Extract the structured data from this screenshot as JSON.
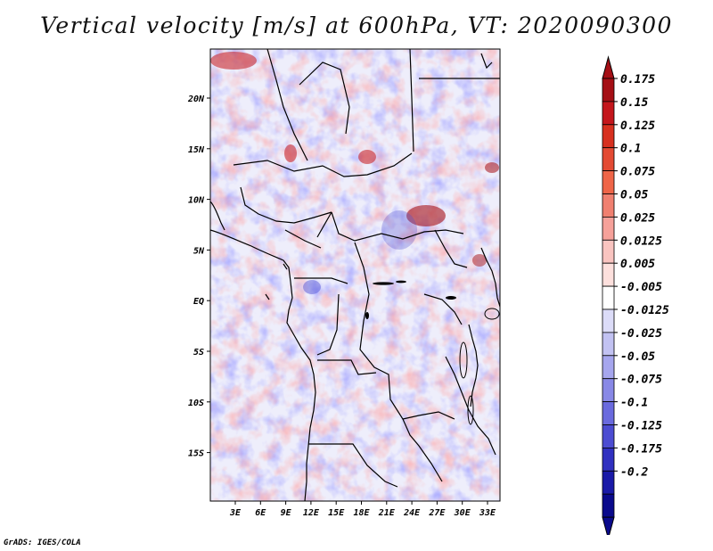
{
  "title": "Vertical velocity [m/s] at 600hPa, VT: 2020090300",
  "footer": "GrADS: IGES/COLA",
  "map": {
    "lat_ticks": [
      "20N",
      "15N",
      "10N",
      "5N",
      "EQ",
      "5S",
      "10S",
      "15S"
    ],
    "lon_ticks": [
      "3E",
      "6E",
      "9E",
      "12E",
      "15E",
      "18E",
      "21E",
      "24E",
      "27E",
      "30E",
      "33E"
    ]
  },
  "colorbar": {
    "levels": [
      "0.175",
      "0.15",
      "0.125",
      "0.1",
      "0.075",
      "0.05",
      "0.025",
      "0.0125",
      "0.005",
      "-0.005",
      "-0.0125",
      "-0.025",
      "-0.05",
      "-0.075",
      "-0.1",
      "-0.125",
      "-0.175",
      "-0.2"
    ],
    "colors": [
      "#a50f15",
      "#c4161c",
      "#d7301f",
      "#e34a33",
      "#ef6548",
      "#f08070",
      "#f6a19a",
      "#f9c4c0",
      "#fde0dd",
      "#ffffff",
      "#dcdcf8",
      "#c2c2f2",
      "#a6a6ee",
      "#8888e6",
      "#6a6ade",
      "#4c4cd2",
      "#3030c0",
      "#1a1aa8",
      "#0a0a8c"
    ],
    "top_arrow_color": "#a50f15",
    "bottom_arrow_color": "#0a0a8c"
  }
}
